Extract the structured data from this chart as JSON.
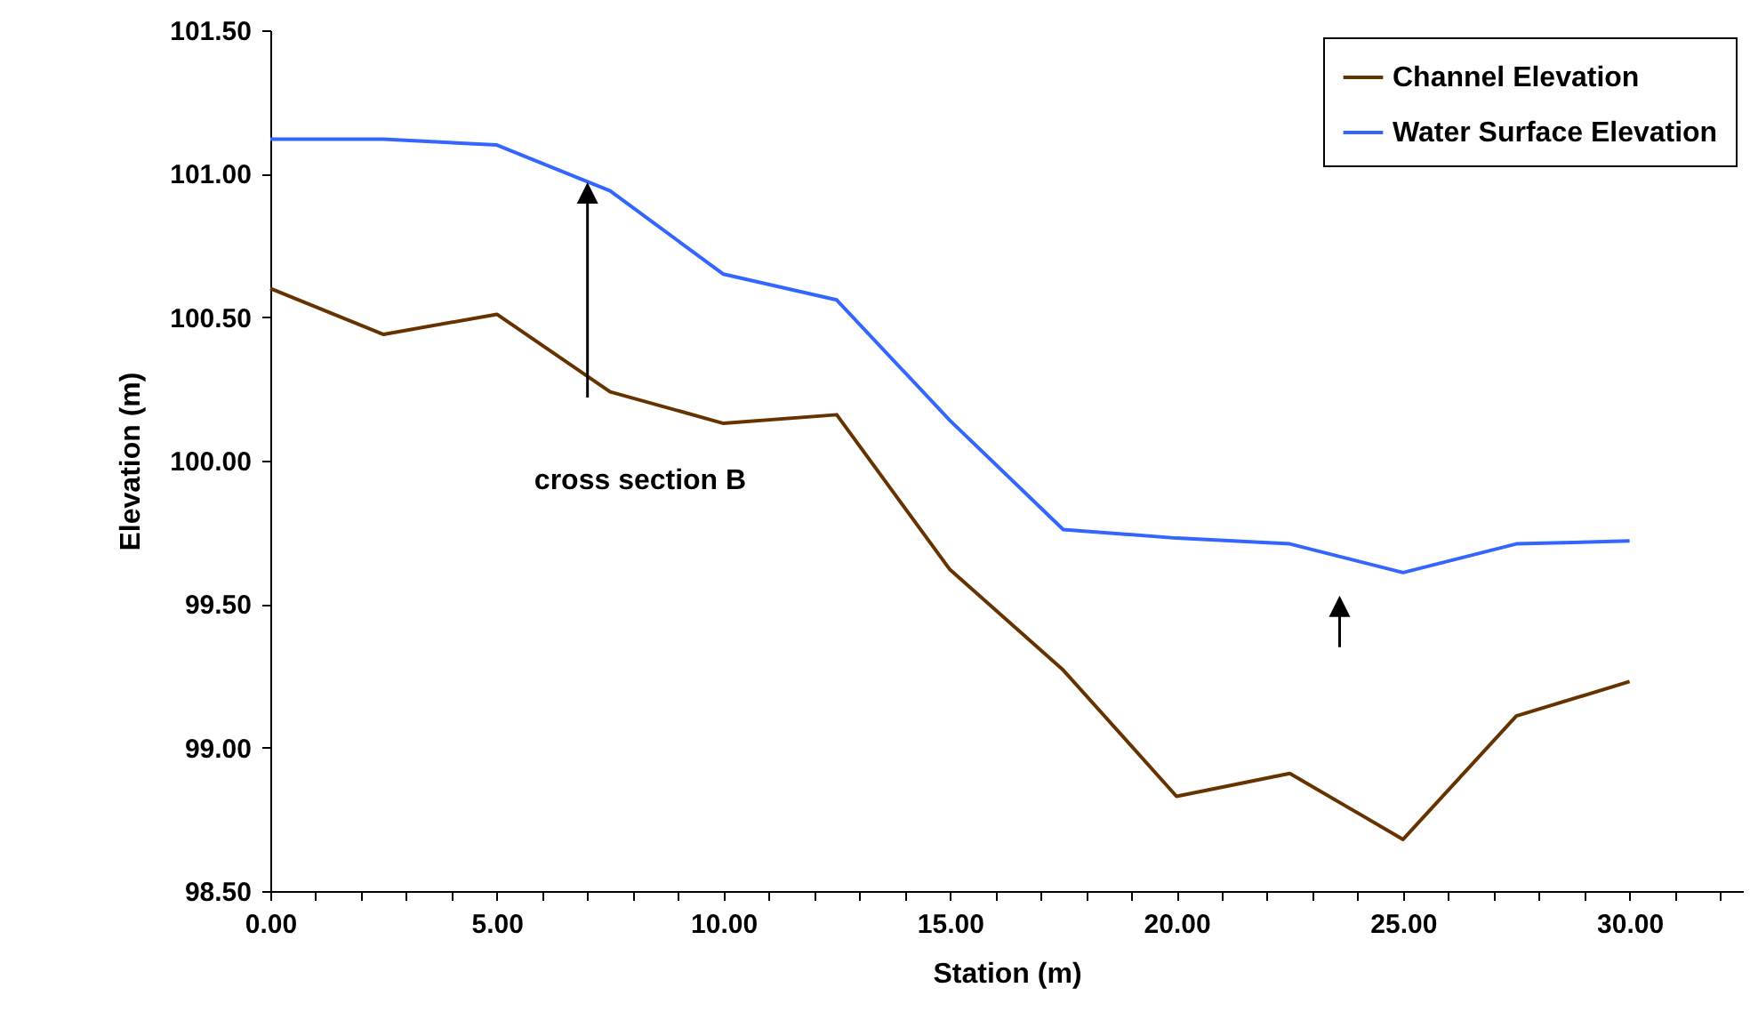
{
  "chart_data": {
    "type": "line",
    "xlabel": "Station (m)",
    "ylabel": "Elevation (m)",
    "x": [
      0,
      2.5,
      5,
      7.5,
      10,
      12.5,
      15,
      17.5,
      20,
      22.5,
      25,
      27.5,
      30
    ],
    "series": [
      {
        "name": "Channel Elevation",
        "color": "#663300",
        "values": [
          100.6,
          100.44,
          100.51,
          100.24,
          100.13,
          100.16,
          99.62,
          99.27,
          98.83,
          98.91,
          98.68,
          99.11,
          99.23
        ]
      },
      {
        "name": "Water Surface Elevation",
        "color": "#3366ff",
        "values": [
          101.12,
          101.12,
          101.1,
          100.94,
          100.65,
          100.56,
          100.14,
          99.76,
          99.73,
          99.71,
          99.61,
          99.71,
          99.72
        ]
      }
    ],
    "xlim": [
      0,
      32.5
    ],
    "xticks": [
      {
        "value": 0,
        "label": "0.00"
      },
      {
        "value": 1,
        "label": null
      },
      {
        "value": 2,
        "label": null
      },
      {
        "value": 3,
        "label": null
      },
      {
        "value": 4,
        "label": null
      },
      {
        "value": 5,
        "label": "5.00"
      },
      {
        "value": 6,
        "label": null
      },
      {
        "value": 7,
        "label": null
      },
      {
        "value": 8,
        "label": null
      },
      {
        "value": 9,
        "label": null
      },
      {
        "value": 10,
        "label": "10.00"
      },
      {
        "value": 11,
        "label": null
      },
      {
        "value": 12,
        "label": null
      },
      {
        "value": 13,
        "label": null
      },
      {
        "value": 14,
        "label": null
      },
      {
        "value": 15,
        "label": "15.00"
      },
      {
        "value": 16,
        "label": null
      },
      {
        "value": 17,
        "label": null
      },
      {
        "value": 18,
        "label": null
      },
      {
        "value": 19,
        "label": null
      },
      {
        "value": 20,
        "label": "20.00"
      },
      {
        "value": 21,
        "label": null
      },
      {
        "value": 22,
        "label": null
      },
      {
        "value": 23,
        "label": null
      },
      {
        "value": 24,
        "label": null
      },
      {
        "value": 25,
        "label": "25.00"
      },
      {
        "value": 26,
        "label": null
      },
      {
        "value": 27,
        "label": null
      },
      {
        "value": 28,
        "label": null
      },
      {
        "value": 29,
        "label": null
      },
      {
        "value": 30,
        "label": "30.00"
      },
      {
        "value": 31,
        "label": null
      },
      {
        "value": 32,
        "label": null
      }
    ],
    "ylim": [
      98.5,
      101.5
    ],
    "yticks": [
      {
        "value": 98.5,
        "label": "98.50"
      },
      {
        "value": 99,
        "label": "99.00"
      },
      {
        "value": 99.5,
        "label": "99.50"
      },
      {
        "value": 100,
        "label": "100.00"
      },
      {
        "value": 100.5,
        "label": "100.50"
      },
      {
        "value": 101,
        "label": "101.00"
      },
      {
        "value": 101.5,
        "label": "101.50"
      }
    ],
    "annotations": [
      "cross section  B"
    ],
    "legend": "top right",
    "grid": false,
    "marker": "none",
    "line_style": "solid"
  }
}
